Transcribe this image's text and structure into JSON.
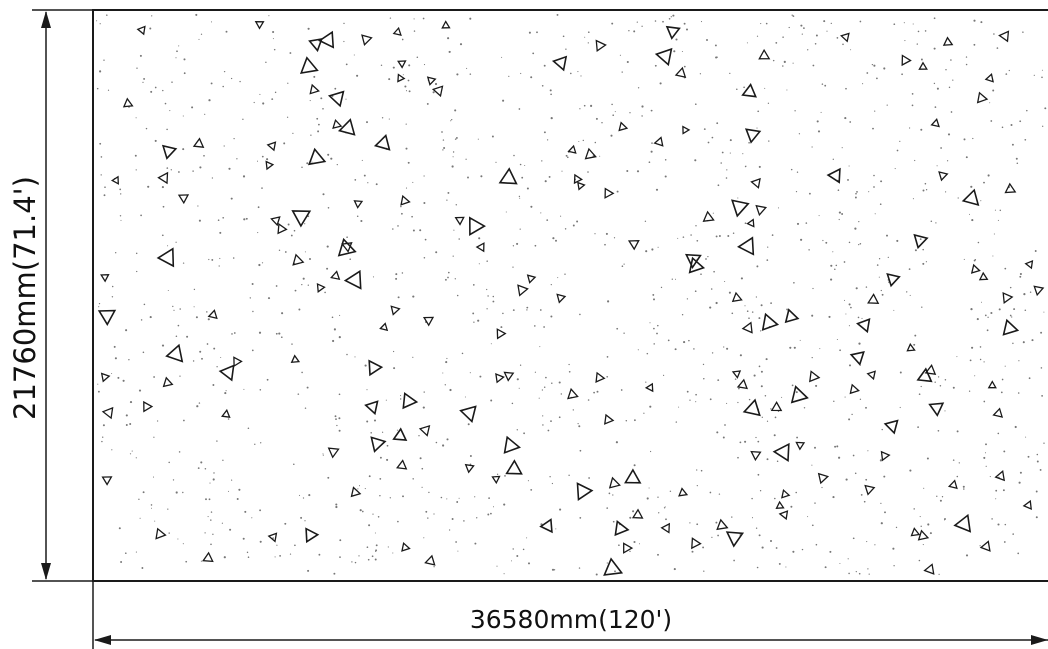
{
  "drawing": {
    "width_dimension": "36580mm(120')",
    "height_dimension": "21760mm(71.4')",
    "hatch": "concrete"
  },
  "colors": {
    "line": "#1a1a1a",
    "background": "#ffffff"
  }
}
